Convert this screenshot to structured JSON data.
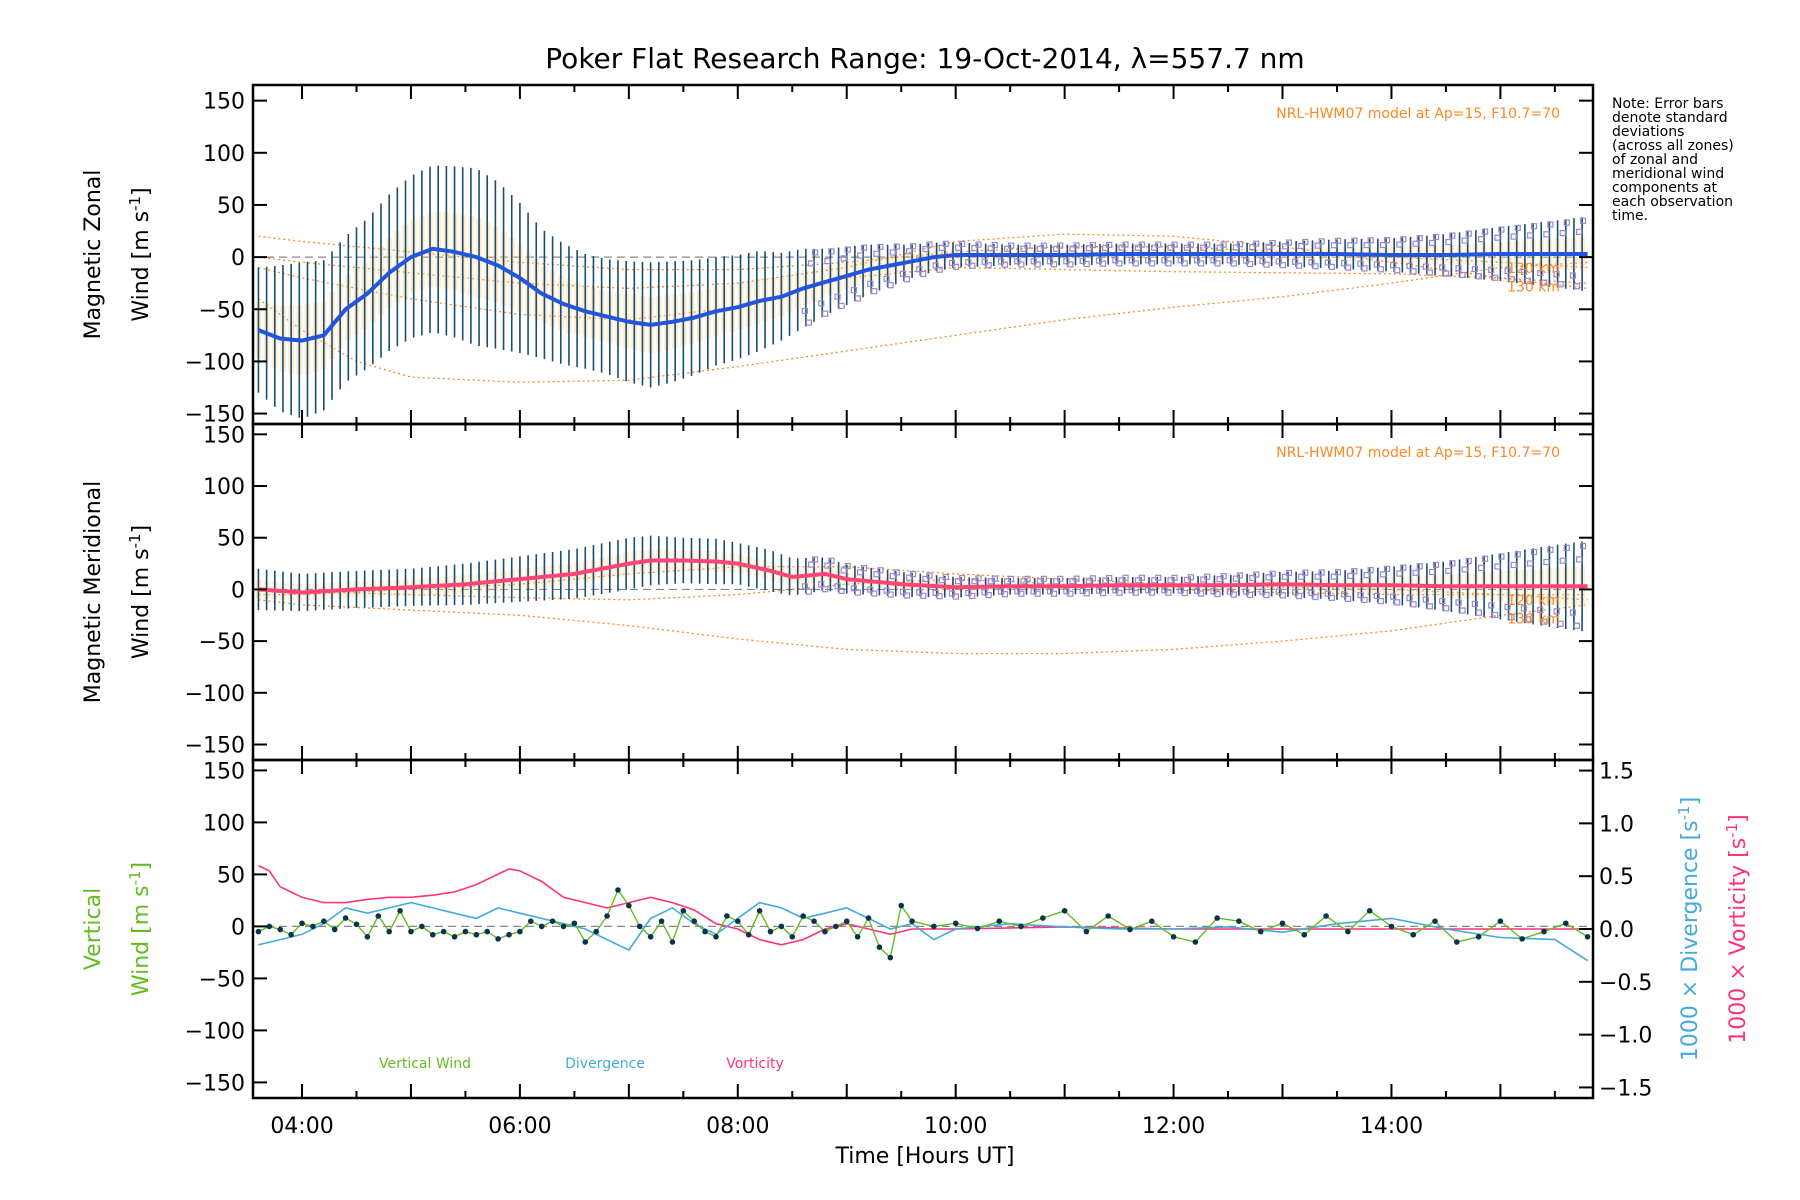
{
  "title": "Poker Flat Research Range: 19-Oct-2014, λ=557.7 nm",
  "note_lines": [
    "Note: Error bars",
    "denote standard",
    "deviations",
    "(across all zones)",
    "of zonal and",
    "meridional wind",
    "components at",
    "each observation",
    "time."
  ],
  "x_axis": {
    "label": "Time [Hours UT]",
    "range": [
      3.55,
      15.85
    ],
    "ticks": [
      4,
      6,
      8,
      10,
      12,
      14
    ],
    "tick_labels": [
      "04:00",
      "06:00",
      "08:00",
      "10:00",
      "12:00",
      "14:00"
    ]
  },
  "colors": {
    "zonal": "#2255dd",
    "meridional": "#ff4477",
    "vertical": "#66bb22",
    "divergence": "#44aadd",
    "vorticity": "#ff3377",
    "model": "#ff8822",
    "errorbar": "#1a4d6e",
    "zone_scatter": "#9988cc"
  },
  "chart_data": [
    {
      "type": "line",
      "panel": "top",
      "ylabel_line1": "Magnetic Zonal",
      "ylabel_line2": "Wind [m s",
      "ylabel_sup": "-1",
      "ylabel_close": "]",
      "ylim": [
        -160,
        165
      ],
      "yticks": [
        -150,
        -100,
        -50,
        0,
        50,
        100,
        150
      ],
      "ytick_labels": [
        "−150",
        "−100",
        "−50",
        "0",
        "50",
        "100",
        "150"
      ],
      "model_label": "NRL-HWM07 model at Ap=15, F10.7=70",
      "model_alt_labels": [
        "120 km",
        "130 km"
      ],
      "series": [
        {
          "name": "Magnetic Zonal Wind",
          "x": [
            3.6,
            3.8,
            4.0,
            4.2,
            4.4,
            4.6,
            4.8,
            5.0,
            5.2,
            5.4,
            5.6,
            5.8,
            6.0,
            6.2,
            6.4,
            6.6,
            6.8,
            7.0,
            7.2,
            7.4,
            7.6,
            7.8,
            8.0,
            8.2,
            8.4,
            8.6,
            8.8,
            9.0,
            9.2,
            9.4,
            9.6,
            9.8,
            10.0,
            10.5,
            11.0,
            11.5,
            12.0,
            12.5,
            13.0,
            13.5,
            14.0,
            14.5,
            15.0,
            15.5,
            15.8
          ],
          "y": [
            -70,
            -78,
            -80,
            -75,
            -50,
            -35,
            -15,
            0,
            8,
            5,
            0,
            -8,
            -20,
            -35,
            -45,
            -52,
            -57,
            -62,
            -65,
            -62,
            -58,
            -52,
            -48,
            -42,
            -38,
            -30,
            -24,
            -18,
            -12,
            -8,
            -4,
            0,
            2,
            2,
            2,
            3,
            3,
            3,
            3,
            3,
            2,
            2,
            3,
            3,
            3
          ],
          "error": [
            60,
            70,
            75,
            72,
            70,
            72,
            75,
            78,
            80,
            82,
            85,
            80,
            72,
            62,
            58,
            55,
            55,
            58,
            60,
            58,
            55,
            52,
            50,
            48,
            42,
            38,
            32,
            28,
            24,
            20,
            16,
            14,
            12,
            10,
            10,
            10,
            10,
            10,
            12,
            14,
            16,
            20,
            26,
            32,
            36
          ]
        }
      ],
      "model_curves": [
        {
          "x": [
            3.6,
            4.0,
            4.5,
            5.0,
            6.0,
            7.0,
            8.0,
            9.0,
            10.0,
            11.0,
            12.0,
            13.0,
            14.0,
            15.0,
            15.8
          ],
          "y": [
            -40,
            -70,
            -100,
            -115,
            -120,
            -118,
            -105,
            -90,
            -75,
            -60,
            -48,
            -38,
            -25,
            -10,
            -5
          ]
        },
        {
          "x": [
            3.6,
            4.0,
            5.0,
            6.0,
            7.0,
            8.0,
            9.0,
            10.0,
            11.0,
            12.0,
            13.0,
            14.0,
            15.0,
            15.8
          ],
          "y": [
            20,
            15,
            5,
            -5,
            -12,
            -12,
            -5,
            5,
            10,
            10,
            5,
            0,
            -5,
            -10
          ]
        },
        {
          "x": [
            3.6,
            4.0,
            5.0,
            6.0,
            7.0,
            8.0,
            9.0,
            10.0,
            11.0,
            12.0,
            13.0,
            14.0,
            15.0,
            15.8
          ],
          "y": [
            0,
            -5,
            -15,
            -25,
            -30,
            -25,
            -10,
            15,
            22,
            20,
            10,
            -5,
            -20,
            -30
          ]
        },
        {
          "x": [
            3.6,
            4.0,
            5.0,
            6.0,
            7.0,
            8.0,
            9.0,
            10.0,
            11.0,
            12.0,
            13.0,
            14.0,
            15.0,
            15.8
          ],
          "y": [
            -10,
            -20,
            -40,
            -55,
            -60,
            -48,
            -20,
            -10,
            -12,
            -14,
            -15,
            -16,
            -20,
            -25
          ]
        }
      ]
    },
    {
      "type": "line",
      "panel": "middle",
      "ylabel_line1": "Magnetic Meridional",
      "ylabel_line2": "Wind [m s",
      "ylabel_sup": "-1",
      "ylabel_close": "]",
      "ylim": [
        -165,
        160
      ],
      "yticks": [
        -150,
        -100,
        -50,
        0,
        50,
        100,
        150
      ],
      "ytick_labels": [
        "−150",
        "−100",
        "−50",
        "0",
        "50",
        "100",
        "150"
      ],
      "model_label": "NRL-HWM07 model at Ap=15, F10.7=70",
      "model_alt_labels": [
        "120 km",
        "130 km"
      ],
      "series": [
        {
          "name": "Magnetic Meridional Wind",
          "x": [
            3.6,
            4.0,
            4.5,
            5.0,
            5.5,
            6.0,
            6.5,
            7.0,
            7.2,
            7.5,
            7.8,
            8.0,
            8.3,
            8.5,
            8.8,
            9.0,
            9.5,
            10.0,
            10.5,
            11.0,
            11.5,
            12.0,
            12.5,
            13.0,
            13.5,
            14.0,
            14.5,
            15.0,
            15.5,
            15.8
          ],
          "y": [
            0,
            -3,
            0,
            2,
            5,
            10,
            15,
            25,
            28,
            28,
            27,
            25,
            18,
            12,
            15,
            10,
            5,
            2,
            3,
            3,
            4,
            4,
            4,
            5,
            4,
            4,
            3,
            3,
            3,
            3
          ],
          "error": [
            20,
            18,
            18,
            18,
            20,
            22,
            24,
            25,
            24,
            22,
            22,
            20,
            20,
            18,
            16,
            14,
            12,
            10,
            8,
            8,
            8,
            8,
            10,
            12,
            14,
            18,
            24,
            32,
            40,
            44
          ]
        }
      ],
      "model_curves": [
        {
          "x": [
            3.6,
            4.0,
            5.0,
            6.0,
            7.0,
            8.0,
            9.0,
            10.0,
            11.0,
            12.0,
            13.0,
            14.0,
            15.0,
            15.8
          ],
          "y": [
            -10,
            -15,
            -20,
            -25,
            -35,
            -48,
            -58,
            -62,
            -62,
            -58,
            -50,
            -40,
            -25,
            -15
          ]
        },
        {
          "x": [
            3.6,
            4.0,
            5.0,
            6.0,
            7.0,
            8.0,
            9.0,
            10.0,
            11.0,
            12.0,
            13.0,
            14.0,
            15.0,
            15.8
          ],
          "y": [
            -5,
            -5,
            0,
            5,
            15,
            22,
            22,
            15,
            10,
            5,
            2,
            0,
            -5,
            -10
          ]
        },
        {
          "x": [
            3.6,
            4.0,
            5.0,
            6.0,
            7.0,
            8.0,
            9.0,
            10.0,
            11.0,
            12.0,
            13.0,
            14.0,
            15.0,
            15.8
          ],
          "y": [
            0,
            -2,
            -5,
            -8,
            -10,
            -5,
            5,
            10,
            5,
            0,
            -3,
            -5,
            -5,
            -5
          ]
        }
      ]
    },
    {
      "type": "line",
      "panel": "bottom",
      "ylabel_line1": "Vertical",
      "ylabel_line2": "Wind [m s",
      "ylabel_sup": "-1",
      "ylabel_close": "]",
      "ylim": [
        -165,
        160
      ],
      "yticks": [
        -150,
        -100,
        -50,
        0,
        50,
        100,
        150
      ],
      "ytick_labels": [
        "−150",
        "−100",
        "−50",
        "0",
        "50",
        "100",
        "150"
      ],
      "y2lim": [
        -1.6,
        1.6
      ],
      "y2ticks": [
        -1.5,
        -1.0,
        -0.5,
        0.0,
        0.5,
        1.0,
        1.5
      ],
      "y2tick_labels": [
        "−1.5",
        "−1.0",
        "−0.5",
        "0.0",
        "0.5",
        "1.0",
        "1.5"
      ],
      "y2label_div": "1000 × Divergence [s",
      "y2label_vor": "1000 × Vorticity [s",
      "y2label_sup": "-1",
      "y2label_close": "]",
      "legend": [
        "Vertical Wind",
        "Divergence",
        "Vorticity"
      ],
      "series": [
        {
          "name": "Vertical Wind",
          "axis": "left",
          "x": [
            3.6,
            3.7,
            3.8,
            3.9,
            4.0,
            4.1,
            4.2,
            4.3,
            4.4,
            4.5,
            4.6,
            4.7,
            4.8,
            4.9,
            5.0,
            5.1,
            5.2,
            5.3,
            5.4,
            5.5,
            5.6,
            5.7,
            5.8,
            5.9,
            6.0,
            6.1,
            6.2,
            6.3,
            6.4,
            6.5,
            6.6,
            6.7,
            6.8,
            6.9,
            7.0,
            7.1,
            7.2,
            7.3,
            7.4,
            7.5,
            7.6,
            7.7,
            7.8,
            7.9,
            8.0,
            8.1,
            8.2,
            8.3,
            8.4,
            8.5,
            8.6,
            8.7,
            8.8,
            8.9,
            9.0,
            9.1,
            9.2,
            9.3,
            9.4,
            9.5,
            9.6,
            9.8,
            10.0,
            10.2,
            10.4,
            10.6,
            10.8,
            11.0,
            11.2,
            11.4,
            11.6,
            11.8,
            12.0,
            12.2,
            12.4,
            12.6,
            12.8,
            13.0,
            13.2,
            13.4,
            13.6,
            13.8,
            14.0,
            14.2,
            14.4,
            14.6,
            14.8,
            15.0,
            15.2,
            15.4,
            15.6,
            15.8
          ],
          "y": [
            -5,
            0,
            -3,
            -8,
            3,
            0,
            5,
            -3,
            8,
            2,
            -10,
            10,
            -5,
            15,
            -5,
            0,
            -8,
            -5,
            -10,
            -5,
            -8,
            -5,
            -12,
            -8,
            -5,
            5,
            0,
            5,
            0,
            3,
            -15,
            -5,
            10,
            35,
            20,
            0,
            -10,
            5,
            -15,
            15,
            5,
            -5,
            -10,
            10,
            5,
            -8,
            15,
            -5,
            0,
            -10,
            10,
            5,
            -5,
            0,
            5,
            -10,
            8,
            -20,
            -30,
            20,
            5,
            0,
            3,
            -2,
            5,
            0,
            8,
            15,
            -5,
            10,
            -3,
            5,
            -10,
            -15,
            8,
            5,
            -5,
            3,
            -8,
            10,
            -5,
            15,
            0,
            -8,
            5,
            -15,
            -10,
            5,
            -12,
            -5,
            3,
            -10
          ]
        },
        {
          "name": "Divergence",
          "axis": "right",
          "x": [
            3.6,
            3.8,
            4.0,
            4.2,
            4.4,
            4.6,
            4.8,
            5.0,
            5.2,
            5.4,
            5.6,
            5.8,
            6.0,
            6.2,
            6.4,
            6.6,
            6.8,
            7.0,
            7.2,
            7.4,
            7.6,
            7.8,
            8.0,
            8.2,
            8.4,
            8.6,
            8.8,
            9.0,
            9.2,
            9.4,
            9.6,
            9.8,
            10.0,
            10.5,
            11.0,
            11.5,
            12.0,
            12.5,
            13.0,
            13.5,
            14.0,
            14.5,
            15.0,
            15.5,
            15.8
          ],
          "y": [
            -0.15,
            -0.1,
            -0.05,
            0.05,
            0.2,
            0.15,
            0.2,
            0.25,
            0.2,
            0.15,
            0.1,
            0.2,
            0.15,
            0.1,
            0.05,
            0.0,
            -0.1,
            -0.2,
            0.1,
            0.2,
            0.05,
            -0.05,
            0.1,
            0.25,
            0.2,
            0.1,
            0.15,
            0.2,
            0.1,
            0.0,
            0.05,
            -0.1,
            0.0,
            0.05,
            0.02,
            0.0,
            0.0,
            0.02,
            -0.03,
            0.05,
            0.1,
            0.0,
            -0.08,
            -0.1,
            -0.3
          ]
        },
        {
          "name": "Vorticity",
          "axis": "right",
          "x": [
            3.6,
            3.7,
            3.8,
            3.9,
            4.0,
            4.2,
            4.4,
            4.6,
            4.8,
            5.0,
            5.2,
            5.4,
            5.6,
            5.8,
            5.9,
            6.0,
            6.1,
            6.2,
            6.4,
            6.6,
            6.8,
            7.0,
            7.2,
            7.4,
            7.6,
            7.8,
            8.0,
            8.2,
            8.4,
            8.6,
            8.8,
            9.0,
            9.2,
            9.4,
            9.6,
            9.8,
            10.0,
            11.0,
            12.0,
            13.0,
            14.0,
            15.0,
            15.8
          ],
          "y": [
            0.6,
            0.55,
            0.4,
            0.35,
            0.3,
            0.25,
            0.25,
            0.28,
            0.3,
            0.3,
            0.32,
            0.35,
            0.42,
            0.52,
            0.57,
            0.55,
            0.5,
            0.45,
            0.3,
            0.25,
            0.2,
            0.25,
            0.3,
            0.25,
            0.18,
            0.05,
            0.0,
            -0.1,
            -0.15,
            -0.1,
            0.0,
            0.05,
            0.0,
            -0.05,
            0.0,
            0.0,
            0.0,
            0.02,
            0.0,
            0.0,
            0.0,
            0.0,
            0.0
          ]
        }
      ]
    }
  ]
}
